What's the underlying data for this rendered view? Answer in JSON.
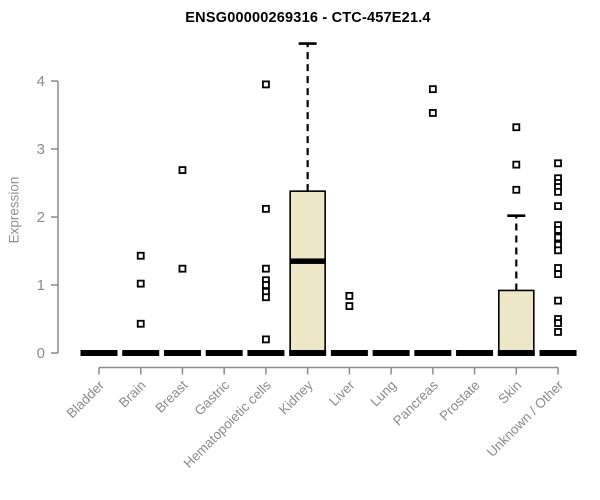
{
  "chart_data": {
    "type": "boxplot",
    "title": "ENSG00000269316 - CTC-457E21.4",
    "ylabel": "Expression",
    "xlabel": "",
    "ylim": [
      0,
      4.6
    ],
    "yticks": [
      0,
      1,
      2,
      3,
      4
    ],
    "grid": false,
    "legend": "none",
    "axis_color": "#8c8c8c",
    "box_fill": "#ede6c7",
    "box_stroke": "#000000",
    "outlier_marker": "open-square",
    "categories": [
      "Bladder",
      "Brain",
      "Breast",
      "Gastric",
      "Hematopoietic cells",
      "Kidney",
      "Liver",
      "Lung",
      "Pancreas",
      "Prostate",
      "Skin",
      "Unknown / Other"
    ],
    "boxes": [
      {
        "category": "Bladder",
        "q1": 0,
        "median": 0,
        "q3": 0,
        "whisker_low": 0,
        "whisker_high": 0,
        "outliers": []
      },
      {
        "category": "Brain",
        "q1": 0,
        "median": 0,
        "q3": 0,
        "whisker_low": 0,
        "whisker_high": 0,
        "outliers": [
          1.43,
          1.02,
          0.43
        ]
      },
      {
        "category": "Breast",
        "q1": 0,
        "median": 0,
        "q3": 0,
        "whisker_low": 0,
        "whisker_high": 0,
        "outliers": [
          2.69,
          1.24
        ]
      },
      {
        "category": "Gastric",
        "q1": 0,
        "median": 0,
        "q3": 0,
        "whisker_low": 0,
        "whisker_high": 0,
        "outliers": []
      },
      {
        "category": "Hematopoietic cells",
        "q1": 0,
        "median": 0,
        "q3": 0,
        "whisker_low": 0,
        "whisker_high": 0,
        "outliers": [
          3.95,
          2.12,
          1.24,
          1.07,
          1.0,
          0.9,
          0.82,
          0.2
        ]
      },
      {
        "category": "Kidney",
        "q1": 0,
        "median": 1.35,
        "q3": 2.38,
        "whisker_low": 0,
        "whisker_high": 4.55,
        "outliers": []
      },
      {
        "category": "Liver",
        "q1": 0,
        "median": 0,
        "q3": 0,
        "whisker_low": 0,
        "whisker_high": 0,
        "outliers": [
          0.84,
          0.69
        ]
      },
      {
        "category": "Lung",
        "q1": 0,
        "median": 0,
        "q3": 0,
        "whisker_low": 0,
        "whisker_high": 0,
        "outliers": []
      },
      {
        "category": "Pancreas",
        "q1": 0,
        "median": 0,
        "q3": 0,
        "whisker_low": 0,
        "whisker_high": 0,
        "outliers": [
          3.88,
          3.53
        ]
      },
      {
        "category": "Prostate",
        "q1": 0,
        "median": 0,
        "q3": 0,
        "whisker_low": 0,
        "whisker_high": 0,
        "outliers": []
      },
      {
        "category": "Skin",
        "q1": 0,
        "median": 0,
        "q3": 0.92,
        "whisker_low": 0,
        "whisker_high": 2.02,
        "outliers": [
          3.32,
          2.77,
          2.4
        ]
      },
      {
        "category": "Unknown / Other",
        "q1": 0,
        "median": 0,
        "q3": 0,
        "whisker_low": 0,
        "whisker_high": 0,
        "outliers": [
          2.79,
          2.57,
          2.5,
          2.44,
          2.37,
          2.16,
          1.88,
          1.81,
          1.7,
          1.59,
          1.51,
          1.25,
          1.16,
          0.77,
          0.5,
          0.44,
          0.31
        ]
      }
    ]
  }
}
